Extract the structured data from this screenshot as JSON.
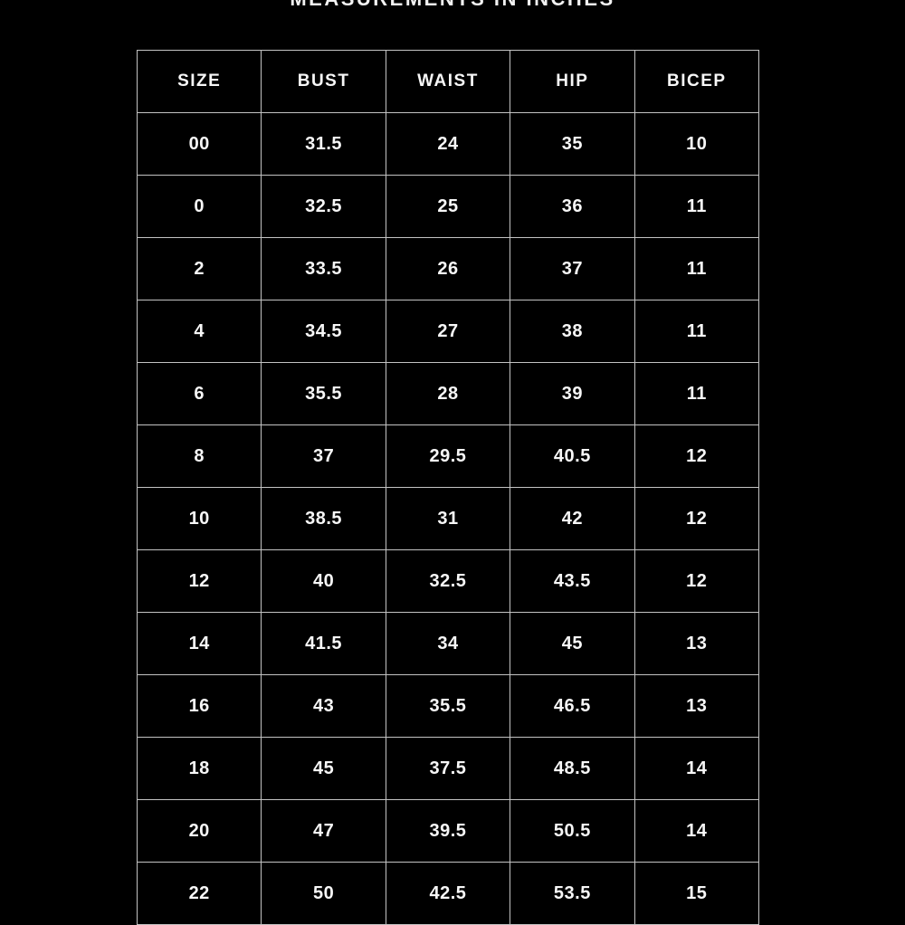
{
  "title": "MEASUREMENTS IN INCHES",
  "colors": {
    "background": "#000000",
    "text": "#f7f7f7",
    "border": "#c3c3c3"
  },
  "chart_data": {
    "type": "table",
    "title": "MEASUREMENTS IN INCHES",
    "columns": [
      "SIZE",
      "BUST",
      "WAIST",
      "HIP",
      "BICEP"
    ],
    "rows": [
      [
        "00",
        "31.5",
        "24",
        "35",
        "10"
      ],
      [
        "0",
        "32.5",
        "25",
        "36",
        "11"
      ],
      [
        "2",
        "33.5",
        "26",
        "37",
        "11"
      ],
      [
        "4",
        "34.5",
        "27",
        "38",
        "11"
      ],
      [
        "6",
        "35.5",
        "28",
        "39",
        "11"
      ],
      [
        "8",
        "37",
        "29.5",
        "40.5",
        "12"
      ],
      [
        "10",
        "38.5",
        "31",
        "42",
        "12"
      ],
      [
        "12",
        "40",
        "32.5",
        "43.5",
        "12"
      ],
      [
        "14",
        "41.5",
        "34",
        "45",
        "13"
      ],
      [
        "16",
        "43",
        "35.5",
        "46.5",
        "13"
      ],
      [
        "18",
        "45",
        "37.5",
        "48.5",
        "14"
      ],
      [
        "20",
        "47",
        "39.5",
        "50.5",
        "14"
      ],
      [
        "22",
        "50",
        "42.5",
        "53.5",
        "15"
      ]
    ]
  }
}
